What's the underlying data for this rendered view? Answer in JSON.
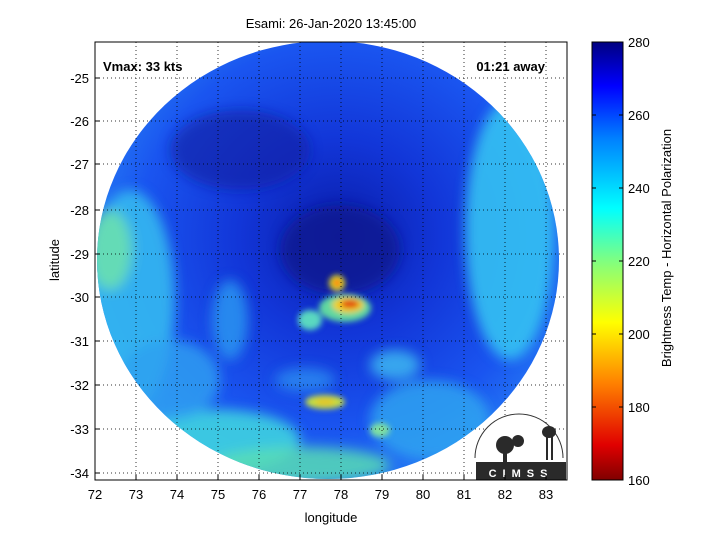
{
  "title": "Esami: 26-Jan-2020 13:45:00",
  "vmax_label": "Vmax: 33 kts",
  "time_label": "01:21 away",
  "xlabel": "longitude",
  "ylabel": "latitude",
  "x_ticks": [
    "72",
    "73",
    "74",
    "75",
    "76",
    "77",
    "78",
    "79",
    "80",
    "81",
    "82",
    "83"
  ],
  "y_ticks": [
    "-25",
    "-26",
    "-27",
    "-28",
    "-29",
    "-30",
    "-31",
    "-32",
    "-33",
    "-34"
  ],
  "xlim": [
    72,
    83.5
  ],
  "ylim": [
    -34.1,
    -24.2
  ],
  "colorbar": {
    "label": "Brightness Temp - Horizontal Polarization",
    "ticks": [
      "280",
      "260",
      "240",
      "220",
      "200",
      "180",
      "160"
    ],
    "range": [
      160,
      280
    ]
  },
  "logo": {
    "text": "CIMSS",
    "icon": "cimss-logo-icon"
  },
  "colors": {
    "deep_blue": "#0a1fb4",
    "mid_blue": "#1a4cf0",
    "cyan": "#2fd8f0",
    "green": "#6be08a",
    "yellow": "#e8e020",
    "red": "#e02010"
  }
}
